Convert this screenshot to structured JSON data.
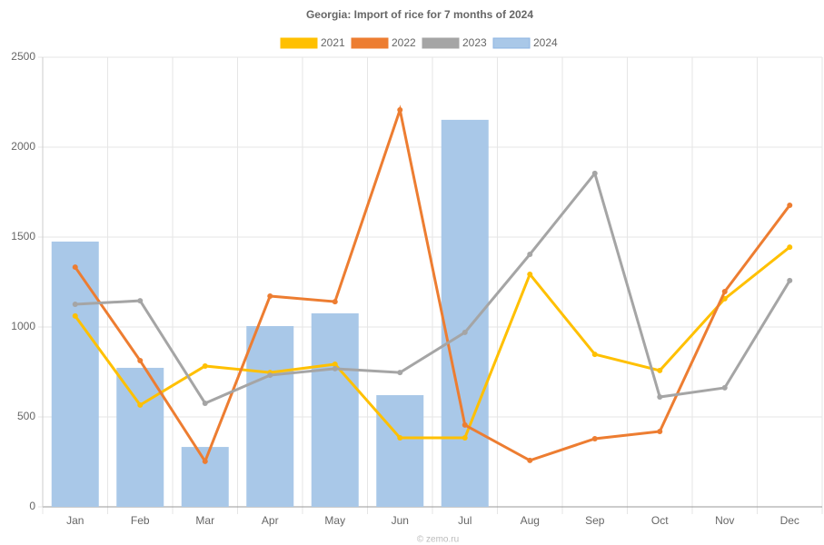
{
  "chart_data": {
    "type": "combo",
    "title": "Georgia: Import of rice for 7 months of 2024",
    "categories": [
      "Jan",
      "Feb",
      "Mar",
      "Apr",
      "May",
      "Jun",
      "Jul",
      "Aug",
      "Sep",
      "Oct",
      "Nov",
      "Dec"
    ],
    "series": [
      {
        "name": "2021",
        "type": "line",
        "color": "#ffc000",
        "values": [
          1061,
          566,
          783,
          747,
          793,
          384,
          384,
          1293,
          848,
          758,
          1157,
          1444
        ]
      },
      {
        "name": "2022",
        "type": "line",
        "color": "#ed7d31",
        "values": [
          1333,
          813,
          253,
          1172,
          1141,
          2207,
          455,
          258,
          379,
          419,
          1197,
          1677
        ]
      },
      {
        "name": "2023",
        "type": "line",
        "color": "#a5a5a5",
        "values": [
          1126,
          1146,
          576,
          732,
          768,
          747,
          970,
          1404,
          1854,
          611,
          662,
          1258
        ]
      },
      {
        "name": "2024",
        "type": "bar",
        "color": "#a9c8e8",
        "values": [
          1475,
          773,
          333,
          1005,
          1076,
          621,
          2152,
          null,
          null,
          null,
          null,
          null
        ]
      }
    ],
    "ylim": [
      0,
      2500
    ],
    "yticks": [
      0,
      500,
      1000,
      1500,
      2000,
      2500
    ],
    "grid": true,
    "legend": "top",
    "footer": "© zemo.ru"
  }
}
